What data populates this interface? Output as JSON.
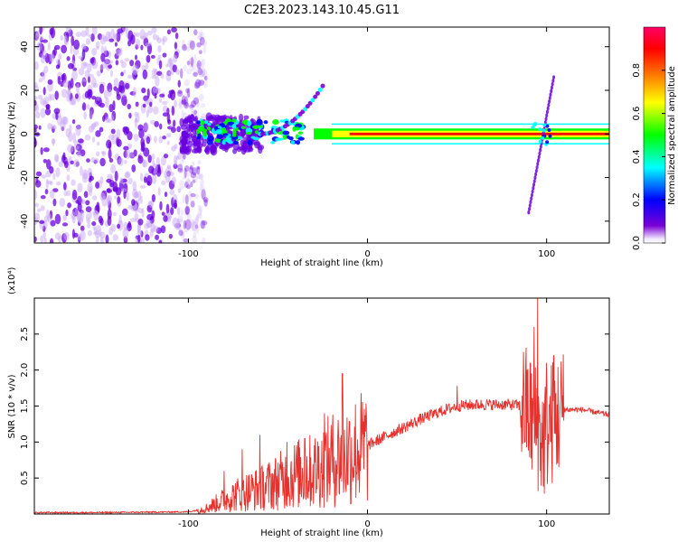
{
  "title": "C2E3.2023.143.10.45.G11",
  "colors": {
    "snr_line": "#e8302c",
    "spec_strong": "#6a00e0",
    "spec_weak": "#c9a8f5"
  },
  "chart_data": [
    {
      "type": "heatmap",
      "xlabel": "Height of straight line (km)",
      "ylabel": "Frequency (Hz)",
      "xlim": [
        -186,
        135
      ],
      "ylim": [
        -50,
        49
      ],
      "xticks": [
        "-100",
        "0",
        "100"
      ],
      "yticks": [
        "-40",
        "-20",
        "0",
        "20",
        "40"
      ],
      "colorbar": {
        "label": "Normalized spectral amplitude",
        "range": [
          0,
          1
        ],
        "ticks": [
          "0.0",
          "0.2",
          "0.4",
          "0.6",
          "0.8"
        ],
        "colormap": [
          "#ffffff",
          "#7a00d6",
          "#0000ff",
          "#00ffff",
          "#00ff00",
          "#ffff00",
          "#ff6600",
          "#ff0000",
          "#ff0066"
        ]
      },
      "features": [
        {
          "name": "noise",
          "x": [
            -186,
            -100
          ],
          "y": [
            -50,
            49
          ],
          "amplitude": 0.1
        },
        {
          "name": "carrier",
          "x": [
            -104,
            135
          ],
          "y": [
            -5,
            5
          ],
          "amplitude": 0.9
        },
        {
          "name": "rising-trace",
          "x": [
            -60,
            -25
          ],
          "y": [
            0,
            22
          ],
          "amplitude": 0.3
        },
        {
          "name": "diagonal-trace",
          "x": [
            90,
            104
          ],
          "y": [
            -36,
            26
          ],
          "amplitude": 0.3
        }
      ]
    },
    {
      "type": "line",
      "xlabel": "Height of straight line (km)",
      "ylabel": "SNR (10 * v/v)",
      "ylabel_multiplier": "(x10⁴)",
      "xlim": [
        -186,
        135
      ],
      "ylim": [
        0,
        3.0
      ],
      "xticks": [
        "-100",
        "0",
        "100"
      ],
      "yticks": [
        "0.5",
        "1.0",
        "1.5",
        "2.0",
        "2.5"
      ],
      "series": [
        {
          "x": [
            -186,
            -150,
            -100,
            -90,
            -80,
            -70,
            -60,
            -50,
            -40,
            -30,
            -20,
            -10,
            0,
            10,
            20,
            30,
            40,
            50,
            60,
            70,
            80,
            88,
            92,
            95,
            98,
            100,
            104,
            108,
            110,
            120,
            130,
            135
          ],
          "y": [
            0.02,
            0.02,
            0.03,
            0.08,
            0.2,
            0.3,
            0.35,
            0.45,
            0.55,
            0.6,
            0.75,
            0.85,
            0.95,
            1.08,
            1.2,
            1.32,
            1.42,
            1.5,
            1.52,
            1.52,
            1.52,
            1.5,
            1.3,
            1.2,
            1.0,
            1.2,
            1.3,
            1.4,
            1.45,
            1.45,
            1.4,
            1.38
          ],
          "spikes": [
            {
              "x": -80,
              "y": 0.6
            },
            {
              "x": -70,
              "y": 0.9
            },
            {
              "x": -60,
              "y": 1.1
            },
            {
              "x": -45,
              "y": 1.0
            },
            {
              "x": -35,
              "y": 1.05
            },
            {
              "x": -24,
              "y": 1.4
            },
            {
              "x": -14,
              "y": 1.95
            },
            {
              "x": 50,
              "y": 1.78
            },
            {
              "x": 93,
              "y": 2.6
            },
            {
              "x": 95,
              "y": 3.0
            },
            {
              "x": 100,
              "y": 2.1
            },
            {
              "x": 104,
              "y": 2.2
            }
          ]
        }
      ]
    }
  ]
}
